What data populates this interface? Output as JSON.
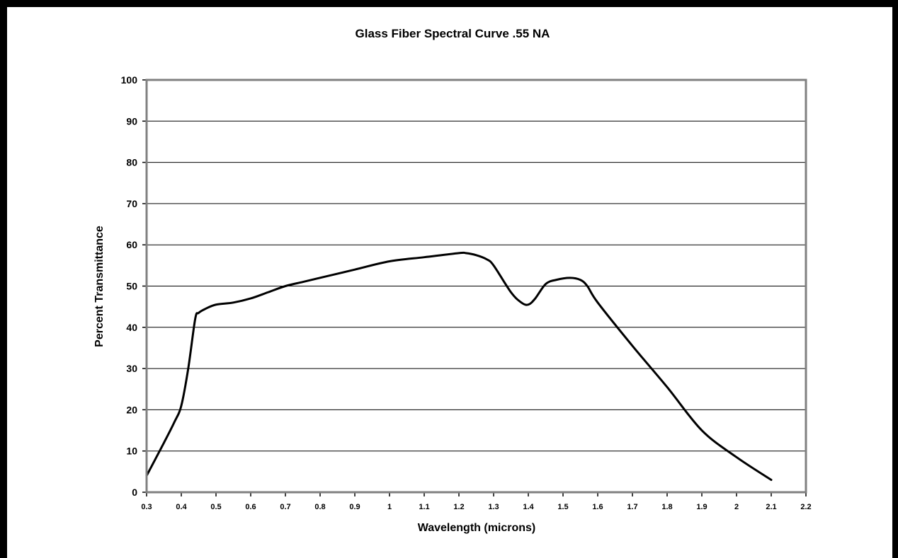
{
  "chart_data": {
    "type": "line",
    "title": "Glass Fiber Spectral Curve .55 NA",
    "xlabel": "Wavelength (microns)",
    "ylabel": "Percent Transmittance",
    "xlim": [
      0.3,
      2.2
    ],
    "ylim": [
      0,
      100
    ],
    "x_ticks": [
      "0.3",
      "0.4",
      "0.5",
      "0.6",
      "0.7",
      "0.8",
      "0.9",
      "1",
      "1.1",
      "1.2",
      "1.3",
      "1.4",
      "1.5",
      "1.6",
      "1.7",
      "1.8",
      "1.9",
      "2",
      "2.1",
      "2.2"
    ],
    "y_ticks": [
      "0",
      "10",
      "20",
      "30",
      "40",
      "50",
      "60",
      "70",
      "80",
      "90",
      "100"
    ],
    "grid": "horizontal",
    "legend": "none",
    "colors": {
      "line": "#000000",
      "plot_border": "#808080",
      "grid": "#000000"
    },
    "series": [
      {
        "x": [
          0.3,
          0.35,
          0.38,
          0.4,
          0.42,
          0.44,
          0.45,
          0.47,
          0.5,
          0.55,
          0.6,
          0.65,
          0.7,
          0.75,
          0.8,
          0.9,
          1.0,
          1.1,
          1.2,
          1.22,
          1.25,
          1.28,
          1.3,
          1.35,
          1.38,
          1.4,
          1.42,
          1.45,
          1.48,
          1.52,
          1.55,
          1.57,
          1.6,
          1.7,
          1.8,
          1.9,
          2.0,
          2.1
        ],
        "y": [
          4,
          12,
          17,
          21,
          30,
          42,
          43.5,
          44.5,
          45.5,
          46,
          47,
          48.5,
          50,
          51,
          52,
          54,
          56,
          57,
          58,
          58,
          57.5,
          56.5,
          55,
          48.5,
          46,
          45.5,
          47,
          50.5,
          51.5,
          52,
          51.5,
          50,
          46,
          35.5,
          25.5,
          15,
          8.5,
          3
        ]
      }
    ]
  }
}
